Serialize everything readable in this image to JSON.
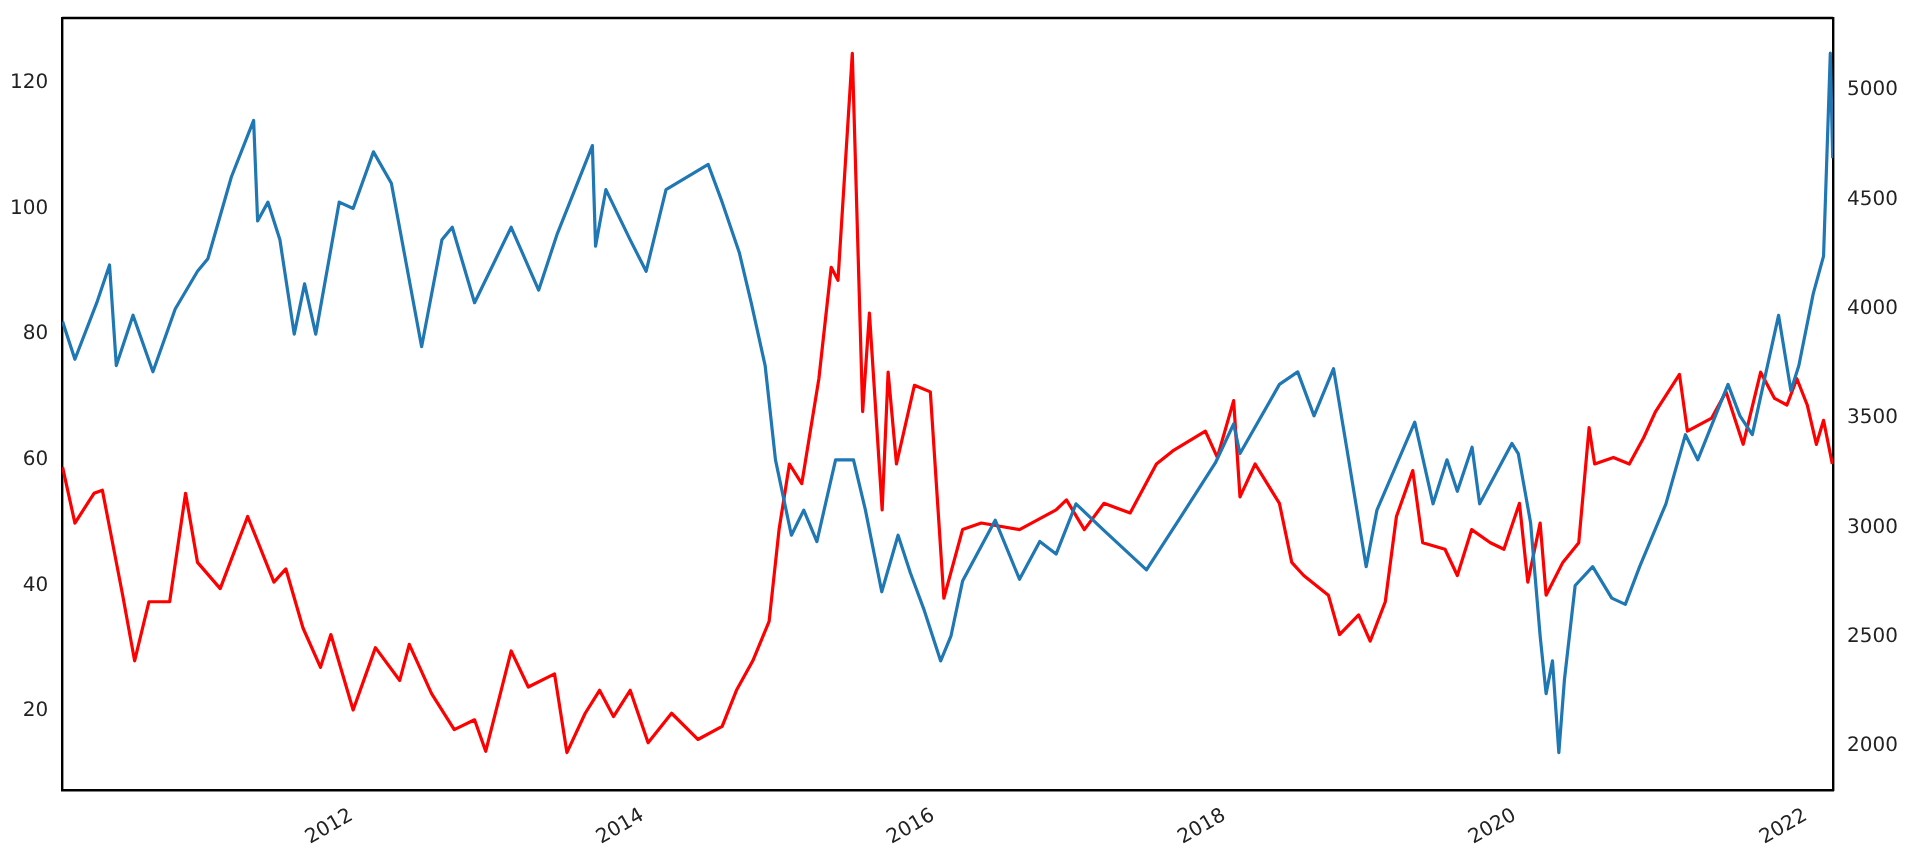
{
  "chart_data": {
    "type": "line",
    "xlim": [
      "2010-01-04",
      "2022-03-11"
    ],
    "xticks": [
      {
        "value": "2012-01-01",
        "label": "2012"
      },
      {
        "value": "2014-01-01",
        "label": "2014"
      },
      {
        "value": "2016-01-01",
        "label": "2016"
      },
      {
        "value": "2018-01-01",
        "label": "2018"
      },
      {
        "value": "2020-01-01",
        "label": "2020"
      },
      {
        "value": "2022-01-01",
        "label": "2022"
      }
    ],
    "ylim": [
      7.5,
      130.3
    ],
    "yticks": [
      20,
      40,
      60,
      80,
      100,
      120
    ],
    "y2lim": [
      1800,
      5330
    ],
    "y2ticks": [
      2000,
      2500,
      3000,
      3500,
      4000,
      4500,
      5000
    ],
    "grid": false,
    "legend": false,
    "marker": "none",
    "line_style": "solid",
    "series": [
      {
        "color": "#1f77b4",
        "axis": "y",
        "x": [
          "2010-01-05",
          "2010-02-05",
          "2010-04-01",
          "2010-05-03",
          "2010-05-20",
          "2010-07-01",
          "2010-08-20",
          "2010-10-15",
          "2010-12-10",
          "2011-01-05",
          "2011-03-05",
          "2011-04-30",
          "2011-05-10",
          "2011-06-05",
          "2011-07-05",
          "2011-08-10",
          "2011-09-05",
          "2011-10-03",
          "2011-12-01",
          "2012-01-05",
          "2012-02-25",
          "2012-04-10",
          "2012-06-25",
          "2012-08-15",
          "2012-09-10",
          "2012-11-05",
          "2013-02-05",
          "2013-04-15",
          "2013-06-01",
          "2013-08-28",
          "2013-09-05",
          "2013-10-01",
          "2013-12-01",
          "2014-01-10",
          "2014-03-01",
          "2014-06-15",
          "2014-07-20",
          "2014-09-01",
          "2014-10-01",
          "2014-11-05",
          "2014-12-01",
          "2015-01-10",
          "2015-02-10",
          "2015-03-15",
          "2015-05-01",
          "2015-06-15",
          "2015-07-15",
          "2015-08-25",
          "2015-10-05",
          "2015-11-05",
          "2015-12-10",
          "2016-01-20",
          "2016-02-15",
          "2016-03-15",
          "2016-06-05",
          "2016-08-05",
          "2016-09-25",
          "2016-11-05",
          "2016-12-25",
          "2017-03-01",
          "2017-06-20",
          "2017-09-15",
          "2017-12-10",
          "2018-01-25",
          "2018-02-10",
          "2018-05-20",
          "2018-07-05",
          "2018-08-15",
          "2018-10-03",
          "2018-11-10",
          "2018-12-24",
          "2019-01-20",
          "2019-04-25",
          "2019-06-10",
          "2019-07-15",
          "2019-08-10",
          "2019-09-16",
          "2019-10-05",
          "2019-12-25",
          "2020-01-10",
          "2020-02-10",
          "2020-03-05",
          "2020-03-20",
          "2020-04-05",
          "2020-04-21",
          "2020-05-05",
          "2020-06-01",
          "2020-07-15",
          "2020-09-01",
          "2020-10-05",
          "2020-11-10",
          "2021-01-15",
          "2021-03-05",
          "2021-04-05",
          "2021-06-20",
          "2021-07-20",
          "2021-08-20",
          "2021-10-25",
          "2021-11-25",
          "2021-12-15",
          "2022-01-20",
          "2022-02-15",
          "2022-03-04",
          "2022-03-10"
        ],
        "values": [
          82,
          76,
          85,
          91,
          75,
          83,
          74,
          84,
          90,
          92,
          105,
          114,
          98,
          101,
          95,
          80,
          88,
          80,
          101,
          100,
          109,
          104,
          78,
          95,
          97,
          85,
          97,
          87,
          96,
          110,
          94,
          103,
          95,
          90,
          103,
          107,
          101,
          93,
          85,
          75,
          60,
          48,
          52,
          47,
          60,
          60,
          52,
          39,
          48,
          42,
          36,
          28,
          32,
          40.7,
          50.4,
          41,
          47,
          45,
          53,
          49,
          42.5,
          51,
          59.5,
          65.7,
          61,
          72,
          74,
          67,
          74.5,
          60,
          43,
          52,
          66,
          53,
          60,
          55,
          62,
          53,
          62.6,
          61,
          50,
          32,
          22.8,
          28,
          13.4,
          25,
          40,
          43,
          38,
          37,
          43,
          53,
          64,
          60,
          72,
          67,
          64,
          83,
          71,
          75,
          86.4,
          92.4,
          124.7,
          108
        ]
      },
      {
        "color": "#ff0000",
        "axis": "y2",
        "x": [
          "2010-01-05",
          "2010-02-05",
          "2010-03-25",
          "2010-04-15",
          "2010-06-05",
          "2010-07-05",
          "2010-08-10",
          "2010-10-01",
          "2010-11-10",
          "2010-12-10",
          "2011-02-05",
          "2011-04-15",
          "2011-06-20",
          "2011-07-20",
          "2011-09-01",
          "2011-10-15",
          "2011-11-10",
          "2012-01-05",
          "2012-03-01",
          "2012-05-01",
          "2012-05-25",
          "2012-07-20",
          "2012-09-15",
          "2012-11-05",
          "2012-12-03",
          "2013-02-05",
          "2013-03-20",
          "2013-05-25",
          "2013-06-25",
          "2013-08-10",
          "2013-09-15",
          "2013-10-20",
          "2013-12-01",
          "2014-01-15",
          "2014-03-15",
          "2014-05-20",
          "2014-07-20",
          "2014-08-25",
          "2014-10-05",
          "2014-11-15",
          "2014-12-10",
          "2015-01-05",
          "2015-02-05",
          "2015-03-20",
          "2015-04-20",
          "2015-05-07",
          "2015-06-12",
          "2015-07-08",
          "2015-07-25",
          "2015-08-26",
          "2015-09-10",
          "2015-10-01",
          "2015-11-15",
          "2015-12-25",
          "2016-01-28",
          "2016-03-15",
          "2016-05-01",
          "2016-08-05",
          "2016-11-05",
          "2016-12-01",
          "2017-01-15",
          "2017-03-05",
          "2017-05-10",
          "2017-07-15",
          "2017-08-25",
          "2017-11-15",
          "2017-12-15",
          "2018-01-25",
          "2018-02-10",
          "2018-03-20",
          "2018-05-20",
          "2018-06-20",
          "2018-07-20",
          "2018-09-20",
          "2018-10-18",
          "2018-12-05",
          "2019-01-03",
          "2019-02-10",
          "2019-03-10",
          "2019-04-20",
          "2019-05-15",
          "2019-07-10",
          "2019-08-10",
          "2019-09-15",
          "2019-11-01",
          "2019-12-05",
          "2020-01-13",
          "2020-02-03",
          "2020-03-05",
          "2020-03-20",
          "2020-05-01",
          "2020-06-10",
          "2020-07-06",
          "2020-07-20",
          "2020-09-05",
          "2020-10-15",
          "2020-11-20",
          "2020-12-20",
          "2021-02-18",
          "2021-03-10",
          "2021-05-10",
          "2021-06-15",
          "2021-07-28",
          "2021-09-10",
          "2021-10-15",
          "2021-11-15",
          "2021-12-10",
          "2022-01-05",
          "2022-01-28",
          "2022-02-15",
          "2022-03-09"
        ],
        "values": [
          3276,
          3020,
          3156,
          3170,
          2690,
          2390,
          2660,
          2660,
          3156,
          2840,
          2720,
          3050,
          2750,
          2810,
          2540,
          2360,
          2510,
          2165,
          2450,
          2300,
          2465,
          2240,
          2075,
          2120,
          1976,
          2435,
          2270,
          2330,
          1970,
          2150,
          2255,
          2135,
          2255,
          2015,
          2150,
          2030,
          2090,
          2255,
          2390,
          2570,
          2990,
          3290,
          3200,
          3680,
          4190,
          4130,
          5168,
          3530,
          3980,
          3080,
          3710,
          3290,
          3650,
          3620,
          2676,
          2990,
          3020,
          2990,
          3080,
          3126,
          2990,
          3110,
          3066,
          3290,
          3350,
          3440,
          3320,
          3580,
          3140,
          3290,
          3110,
          2840,
          2780,
          2690,
          2510,
          2600,
          2480,
          2660,
          3050,
          3260,
          2930,
          2900,
          2780,
          2990,
          2930,
          2900,
          3110,
          2750,
          3020,
          2690,
          2840,
          2930,
          3456,
          3290,
          3320,
          3290,
          3410,
          3530,
          3700,
          3440,
          3500,
          3620,
          3380,
          3710,
          3590,
          3560,
          3680,
          3560,
          3380,
          3490,
          3290
        ]
      }
    ]
  }
}
